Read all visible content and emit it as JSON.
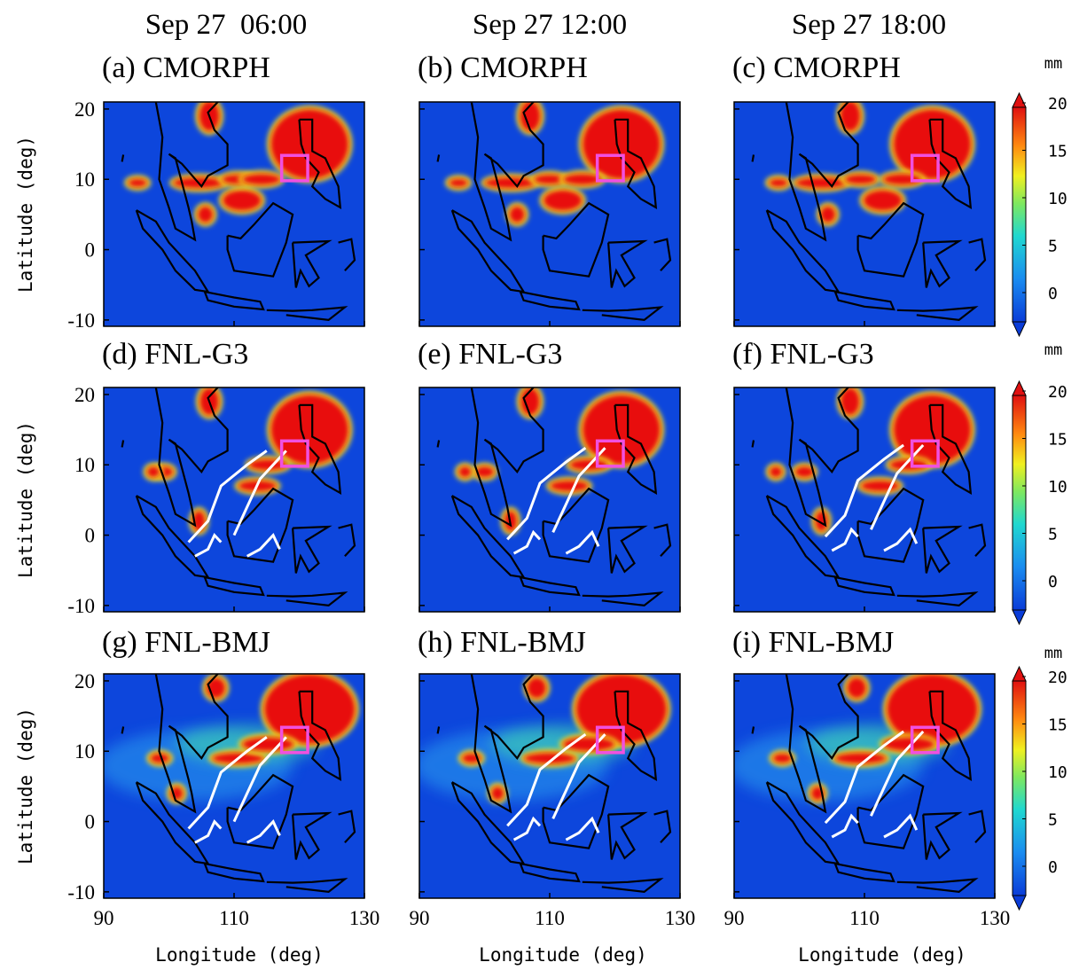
{
  "column_titles": [
    "Sep 27  06:00",
    "Sep 27 12:00",
    "Sep 27 18:00"
  ],
  "panels": [
    {
      "label": "(a) CMORPH"
    },
    {
      "label": "(b) CMORPH"
    },
    {
      "label": "(c) CMORPH"
    },
    {
      "label": "(d) FNL-G3"
    },
    {
      "label": "(e) FNL-G3"
    },
    {
      "label": "(f) FNL-G3"
    },
    {
      "label": "(g) FNL-BMJ"
    },
    {
      "label": "(h) FNL-BMJ"
    },
    {
      "label": "(i) FNL-BMJ"
    }
  ],
  "y_axis": {
    "label": "Latitude (deg)",
    "lim": [
      -10.9,
      21
    ],
    "ticks": [
      20,
      10,
      0,
      -10
    ]
  },
  "x_axis": {
    "label": "Longitude (deg)",
    "lim": [
      90,
      130
    ],
    "ticks": [
      90,
      110,
      130
    ]
  },
  "colorbar": {
    "unit": "mm",
    "ticks": [
      0,
      5,
      10,
      15,
      20
    ]
  }
}
